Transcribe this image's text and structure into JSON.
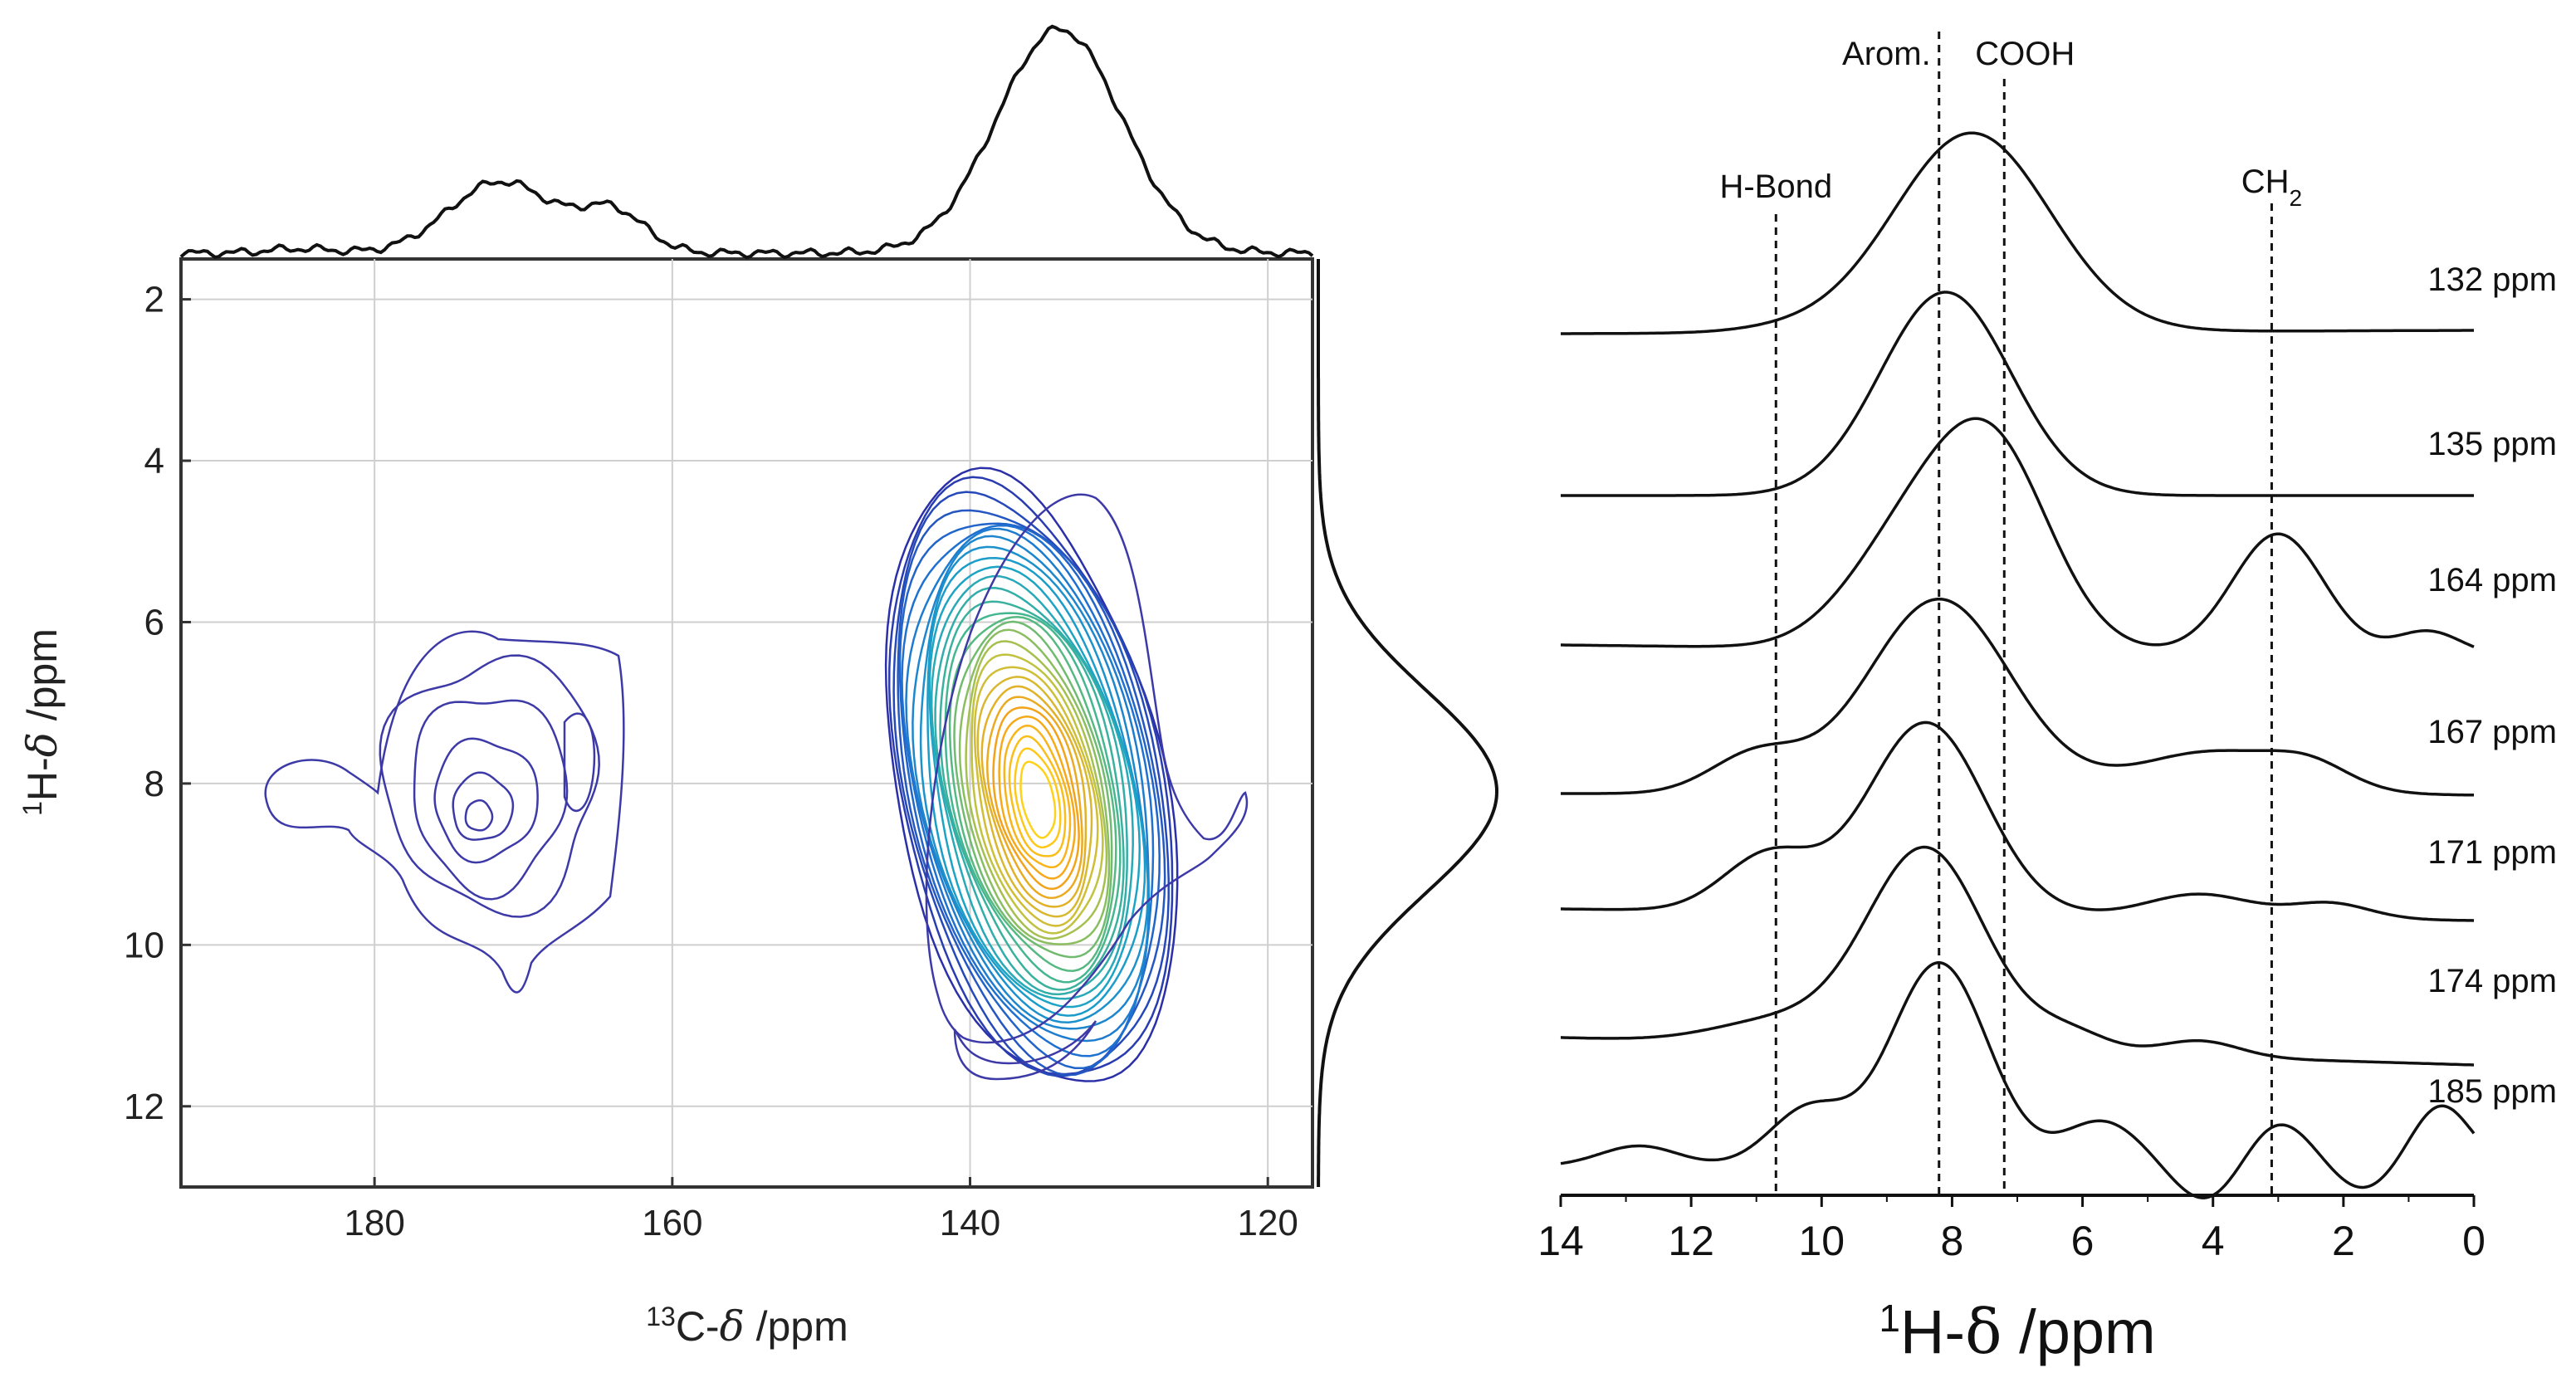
{
  "chart_data": [
    {
      "type": "heatmap",
      "subtype": "2D contour map with projections",
      "xlabel": "13C-δ /ppm",
      "xlabel_parts": {
        "sup": "13",
        "main": "C-",
        "delta": "δ",
        "unit": " /ppm"
      },
      "ylabel": "1H-δ /ppm",
      "ylabel_parts": {
        "sup": "1",
        "main": "H-",
        "delta": "δ",
        "unit": " /ppm"
      },
      "xlim": [
        193,
        117
      ],
      "ylim": [
        13,
        1.5
      ],
      "xticks": [
        180,
        160,
        140,
        120
      ],
      "yticks": [
        2,
        4,
        6,
        8,
        10,
        12
      ],
      "grid": true,
      "colormap": [
        "#2b2fa8",
        "#1f6fd1",
        "#1aa3c8",
        "#49b88a",
        "#c9c33a",
        "#f4a21a",
        "#ffd21a"
      ],
      "peaks": [
        {
          "x": 173,
          "y": 8.4,
          "intensity": 0.07
        },
        {
          "x": 136,
          "y": 8.0,
          "intensity": 1.0
        }
      ],
      "top_projection": [
        {
          "x": 185,
          "y": 0.02
        },
        {
          "x": 171.5,
          "y": 0.32
        },
        {
          "x": 164,
          "y": 0.18
        },
        {
          "x": 134,
          "y": 1.0
        }
      ],
      "side_projection": [
        {
          "y": 8.1,
          "value": 1.0
        }
      ]
    },
    {
      "type": "line",
      "subtype": "stacked traces",
      "xlabel": "1H-δ /ppm",
      "xlabel_parts": {
        "sup": "1",
        "main": "H-",
        "delta": "δ",
        "unit": " /ppm"
      },
      "xlim": [
        14,
        0
      ],
      "xticks": [
        14,
        12,
        10,
        8,
        6,
        4,
        2,
        0
      ],
      "annotations": [
        {
          "label": "H-Bond",
          "x": 10.7
        },
        {
          "label": "Arom.",
          "x": 8.2
        },
        {
          "label": "COOH",
          "x": 7.2
        },
        {
          "label": "CH2",
          "label_main": "CH",
          "label_sub": "2",
          "x": 3.1
        }
      ],
      "series": [
        {
          "name": "132 ppm",
          "peaks": [
            {
              "x": 7.7,
              "h": 1.0,
              "w": 1.2
            },
            {
              "x": 10.5,
              "h": 0.02,
              "w": 0.8
            }
          ]
        },
        {
          "name": "135 ppm",
          "peaks": [
            {
              "x": 8.1,
              "h": 1.0,
              "w": 1.0
            }
          ]
        },
        {
          "name": "164 ppm",
          "peaks": [
            {
              "x": 7.4,
              "h": 1.0,
              "w": 0.9
            },
            {
              "x": 8.8,
              "h": 0.45,
              "w": 0.9
            },
            {
              "x": 3.0,
              "h": 0.6,
              "w": 0.7
            },
            {
              "x": 0.7,
              "h": 0.12,
              "w": 0.5
            }
          ]
        },
        {
          "name": "167 ppm",
          "peaks": [
            {
              "x": 8.2,
              "h": 1.0,
              "w": 1.1
            },
            {
              "x": 11.0,
              "h": 0.2,
              "w": 0.7
            },
            {
              "x": 4.0,
              "h": 0.22,
              "w": 1.2
            },
            {
              "x": 2.5,
              "h": 0.1,
              "w": 0.6
            }
          ]
        },
        {
          "name": "171 ppm",
          "peaks": [
            {
              "x": 8.4,
              "h": 1.0,
              "w": 0.9
            },
            {
              "x": 10.8,
              "h": 0.3,
              "w": 0.7
            },
            {
              "x": 4.2,
              "h": 0.12,
              "w": 0.8
            },
            {
              "x": 2.2,
              "h": 0.08,
              "w": 0.6
            }
          ]
        },
        {
          "name": "174 ppm",
          "peaks": [
            {
              "x": 8.4,
              "h": 1.0,
              "w": 0.9
            },
            {
              "x": 10.6,
              "h": 0.12,
              "w": 1.0
            },
            {
              "x": 6.2,
              "h": 0.1,
              "w": 0.6
            },
            {
              "x": 4.2,
              "h": 0.08,
              "w": 0.6
            }
          ]
        },
        {
          "name": "185 ppm",
          "peaks": [
            {
              "x": 8.2,
              "h": 1.0,
              "w": 0.75
            },
            {
              "x": 10.2,
              "h": 0.28,
              "w": 0.6
            },
            {
              "x": 12.8,
              "h": 0.1,
              "w": 0.6
            },
            {
              "x": 5.7,
              "h": 0.22,
              "w": 0.6
            },
            {
              "x": 3.0,
              "h": 0.22,
              "w": 0.5
            },
            {
              "x": 0.5,
              "h": 0.3,
              "w": 0.45
            },
            {
              "x": 4.1,
              "h": -0.18,
              "w": 0.5
            },
            {
              "x": 1.7,
              "h": -0.12,
              "w": 0.45
            }
          ]
        }
      ]
    }
  ]
}
